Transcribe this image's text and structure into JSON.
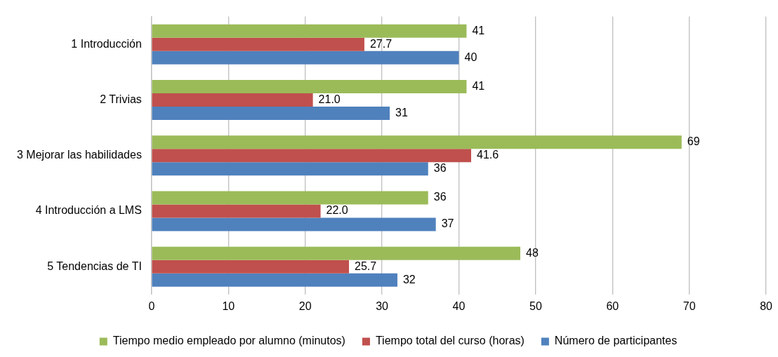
{
  "chart_data": {
    "type": "bar",
    "orientation": "horizontal",
    "categories": [
      "1 Introducción",
      "2 Trivias",
      "3 Mejorar las habilidades",
      "4 Introducción a LMS",
      "5 Tendencias de TI"
    ],
    "series": [
      {
        "name": "Tiempo medio empleado por alumno (minutos)",
        "color": "#9bbb59",
        "values": [
          41,
          41,
          69,
          36,
          48
        ],
        "value_labels": [
          "41",
          "41",
          "69",
          "36",
          "48"
        ]
      },
      {
        "name": "Tiempo total del curso (horas)",
        "color": "#c0504d",
        "values": [
          27.7,
          21.0,
          41.6,
          22.0,
          25.7
        ],
        "value_labels": [
          "27.7",
          "21.0",
          "41.6",
          "22.0",
          "25.7"
        ]
      },
      {
        "name": "Número de participantes",
        "color": "#4f81bd",
        "values": [
          40,
          31,
          36,
          37,
          32
        ],
        "value_labels": [
          "40",
          "31",
          "36",
          "37",
          "32"
        ]
      }
    ],
    "xlim": [
      0,
      80
    ],
    "xticks": [
      0,
      10,
      20,
      30,
      40,
      50,
      60,
      70,
      80
    ],
    "grid": "x",
    "legend": "bottom"
  }
}
